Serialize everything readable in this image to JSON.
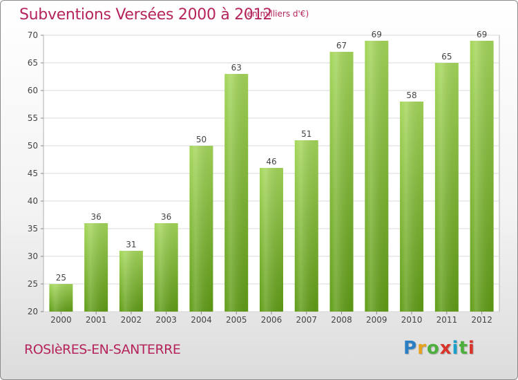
{
  "header": {
    "title": "Subventions Versées 2000 à 2012",
    "subtitle": "(en milliers d'€)"
  },
  "footer": {
    "commune": "ROSIèRES-EN-SANTERRE",
    "logo": "Proxiti"
  },
  "colors": {
    "bar_top": "#a4d65a",
    "bar_bottom": "#5f9c16",
    "title": "#b5245c"
  },
  "chart_data": {
    "type": "bar",
    "title": "Subventions Versées 2000 à 2012",
    "subtitle": "(en milliers d'€)",
    "categories": [
      "2000",
      "2001",
      "2002",
      "2003",
      "2004",
      "2005",
      "2006",
      "2007",
      "2008",
      "2009",
      "2010",
      "2011",
      "2012"
    ],
    "values": [
      25,
      36,
      31,
      36,
      50,
      63,
      46,
      51,
      67,
      69,
      58,
      65,
      69
    ],
    "data_labels": [
      "25",
      "36",
      "31",
      "36",
      "50",
      "63",
      "46",
      "51",
      "67",
      "69",
      "58",
      "65",
      "69"
    ],
    "ylim": [
      20,
      70
    ],
    "yticks": [
      "20",
      "25",
      "30",
      "35",
      "40",
      "45",
      "50",
      "55",
      "60",
      "65",
      "70"
    ],
    "grid": true,
    "legend": "none"
  }
}
